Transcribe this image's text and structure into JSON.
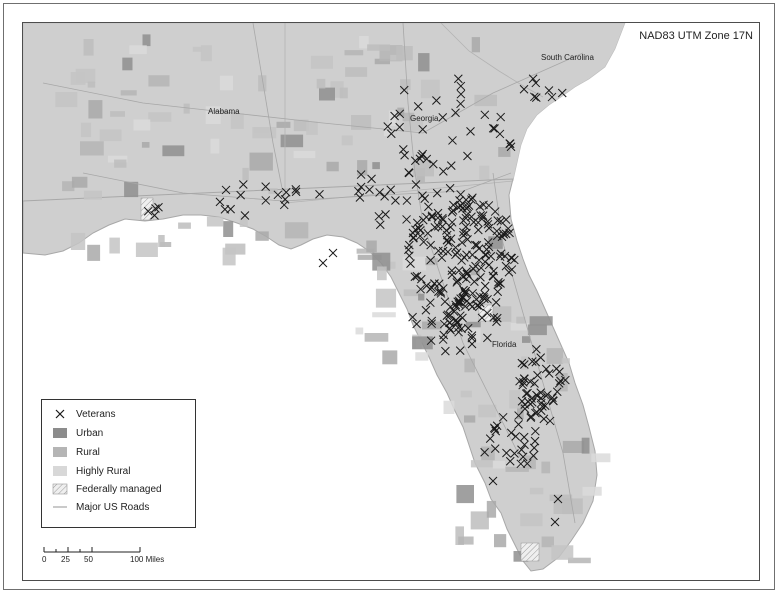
{
  "map": {
    "projection_label": "NAD83 UTM Zone 17N",
    "state_labels": [
      {
        "name": "Alabama"
      },
      {
        "name": "Georgia"
      },
      {
        "name": "South Carolina"
      },
      {
        "name": "Florida"
      }
    ],
    "colors": {
      "land": "#cfcfcf",
      "water": "#ffffff",
      "veteran_marker": "#1a1a1a",
      "urban": "#8c8c8c",
      "rural": "#b5b5b5",
      "highly_rural": "#d8d8d8",
      "road": "#a7a7a7"
    }
  },
  "legend": {
    "items": [
      {
        "label": "Veterans",
        "symbol": "x-marker"
      },
      {
        "label": "Urban",
        "symbol": "dark-gray-fill"
      },
      {
        "label": "Rural",
        "symbol": "medium-gray-fill"
      },
      {
        "label": "Highly Rural",
        "symbol": "light-gray-fill"
      },
      {
        "label": "Federally managed",
        "symbol": "hatched-fill"
      },
      {
        "label": "Major US Roads",
        "symbol": "light-line"
      }
    ]
  },
  "scalebar": {
    "ticks": [
      "0",
      "25",
      "50",
      "100 Miles"
    ]
  }
}
